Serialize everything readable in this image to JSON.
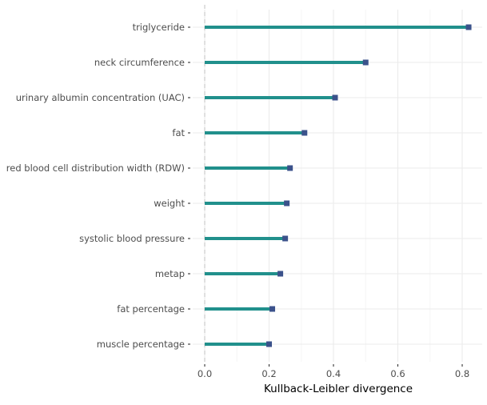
{
  "chart_data": {
    "type": "bar",
    "orientation": "horizontal",
    "style": "lollipop",
    "categories": [
      "triglyceride",
      "neck circumference",
      "urinary albumin concentration (UAC)",
      "fat",
      "red blood cell distribution width (RDW)",
      "weight",
      "systolic blood pressure",
      "metap",
      "fat percentage",
      "muscle percentage"
    ],
    "values": [
      0.82,
      0.5,
      0.405,
      0.31,
      0.265,
      0.255,
      0.25,
      0.235,
      0.21,
      0.2
    ],
    "xlabel": "Kullback-Leibler divergence",
    "ylabel": "",
    "title": "",
    "xlim": [
      -0.02,
      0.86
    ],
    "xticks": [
      0.0,
      0.2,
      0.4,
      0.6,
      0.8
    ],
    "xtick_labels": [
      "0.0",
      "0.2",
      "0.4",
      "0.6",
      "0.8"
    ],
    "reference_line": 0.0,
    "grid": true,
    "legend": "none",
    "colors": {
      "stem": "#21908C",
      "marker": "#3B528B",
      "grid_major": "#ebebeb",
      "grid_minor": "#f5f5f5",
      "reference": "#cccccc",
      "text": "#4d4d4d"
    }
  }
}
